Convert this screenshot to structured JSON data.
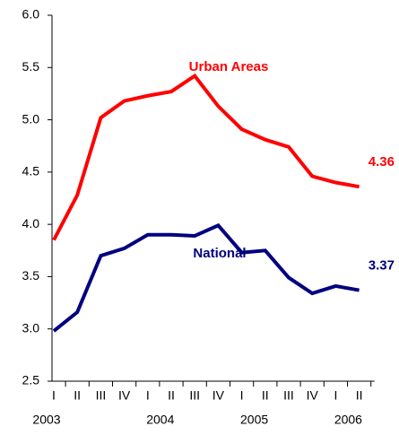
{
  "chart_data": {
    "type": "line",
    "categories": [
      "I",
      "II",
      "III",
      "IV",
      "I",
      "II",
      "III",
      "IV",
      "I",
      "II",
      "III",
      "IV",
      "I",
      "II"
    ],
    "category_groups": [
      "2003",
      "2004",
      "2005",
      "2006"
    ],
    "series": [
      {
        "name": "Urban Areas",
        "color": "#ff0000",
        "values": [
          3.85,
          4.28,
          5.02,
          5.18,
          5.23,
          5.27,
          5.42,
          5.13,
          4.91,
          4.81,
          4.74,
          4.46,
          4.4,
          4.36
        ],
        "value_labels": [
          null,
          null,
          null,
          null,
          null,
          null,
          null,
          null,
          null,
          null,
          null,
          null,
          null,
          "4.36"
        ]
      },
      {
        "name": "National",
        "color": "#000080",
        "values": [
          2.98,
          3.16,
          3.7,
          3.77,
          3.9,
          3.9,
          3.89,
          3.99,
          3.73,
          3.75,
          3.49,
          3.34,
          3.41,
          3.37
        ],
        "value_labels": [
          null,
          null,
          null,
          null,
          null,
          null,
          null,
          null,
          null,
          null,
          null,
          null,
          null,
          "3.37"
        ]
      }
    ],
    "ylim": [
      2.5,
      6.0
    ],
    "yticks": [
      2.5,
      {
        "value": 3.0,
        "label": "3.0"
      },
      3.5,
      {
        "value": 4.0,
        "label": "4.0"
      },
      4.5,
      {
        "value": 5.0,
        "label": "5.0"
      },
      5.5,
      {
        "value": 6.0,
        "label": "6.0"
      }
    ],
    "grid": false
  }
}
